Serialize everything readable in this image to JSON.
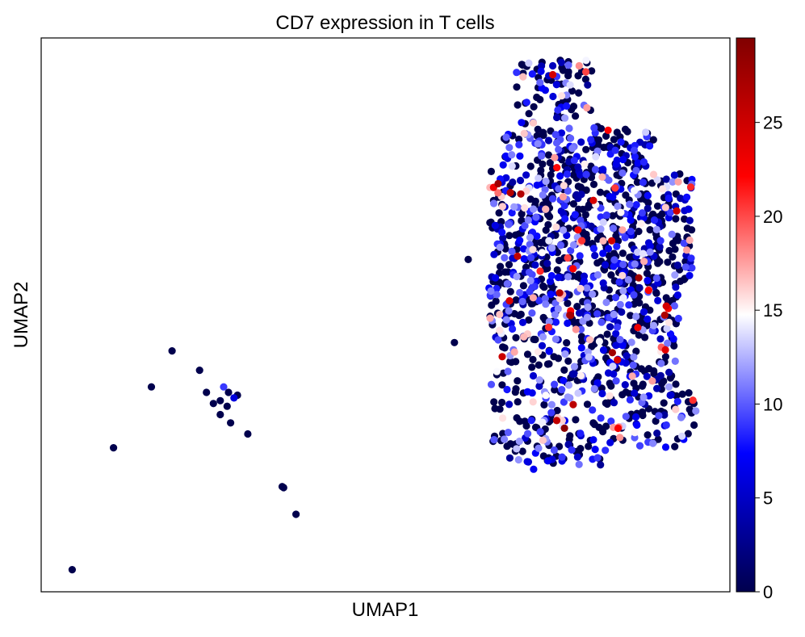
{
  "chart_data": {
    "type": "scatter",
    "title": "CD7 expression in T cells",
    "xlabel": "UMAP1",
    "ylabel": "UMAP2",
    "xlim": [
      0,
      10
    ],
    "ylim": [
      0,
      10
    ],
    "x_ticks_shown": false,
    "y_ticks_shown": false,
    "grid": false,
    "point_color_by": "CD7 expression",
    "colorbar": {
      "range": [
        0,
        29.5
      ],
      "ticks": [
        0,
        5,
        10,
        15,
        20,
        25
      ],
      "tick_labels": [
        "0",
        "5",
        "10",
        "15",
        "20",
        "25"
      ],
      "colormap": "seismic",
      "stops": [
        "#00004d",
        "#0000ff",
        "#ffffff",
        "#ff0000",
        "#800000"
      ]
    },
    "outlier_points": [
      {
        "x": 0.45,
        "y": 0.4,
        "value": 0
      },
      {
        "x": 1.05,
        "y": 2.6,
        "value": 0
      },
      {
        "x": 1.6,
        "y": 3.7,
        "value": 0
      },
      {
        "x": 1.9,
        "y": 4.35,
        "value": 0
      },
      {
        "x": 2.3,
        "y": 4.0,
        "value": 0
      },
      {
        "x": 2.4,
        "y": 3.6,
        "value": 0
      },
      {
        "x": 2.5,
        "y": 3.4,
        "value": 0
      },
      {
        "x": 2.6,
        "y": 3.45,
        "value": 0
      },
      {
        "x": 2.65,
        "y": 3.7,
        "value": 9
      },
      {
        "x": 2.72,
        "y": 3.6,
        "value": 0
      },
      {
        "x": 2.7,
        "y": 3.35,
        "value": 0
      },
      {
        "x": 2.8,
        "y": 3.5,
        "value": 6
      },
      {
        "x": 2.85,
        "y": 3.55,
        "value": 0
      },
      {
        "x": 2.6,
        "y": 3.2,
        "value": 0
      },
      {
        "x": 2.75,
        "y": 3.05,
        "value": 0
      },
      {
        "x": 3.0,
        "y": 2.85,
        "value": 0
      },
      {
        "x": 3.5,
        "y": 1.9,
        "value": 0
      },
      {
        "x": 3.52,
        "y": 1.88,
        "value": 0
      },
      {
        "x": 3.7,
        "y": 1.4,
        "value": 0
      },
      {
        "x": 6.0,
        "y": 4.5,
        "value": 0
      },
      {
        "x": 6.2,
        "y": 6.0,
        "value": 0
      }
    ],
    "cluster": {
      "n_points": 1400,
      "x_range": [
        6.3,
        9.6
      ],
      "y_range": [
        2.2,
        9.6
      ],
      "seed": 7,
      "value_distribution": {
        "zero_fraction": 0.48,
        "low_range": [
          3,
          12
        ],
        "mid_range": [
          13,
          18
        ],
        "high_range": [
          19,
          29
        ]
      },
      "high_hotspots": [
        {
          "x": 6.6,
          "y": 7.3
        },
        {
          "x": 7.0,
          "y": 7.2
        },
        {
          "x": 7.7,
          "y": 5.0
        },
        {
          "x": 8.3,
          "y": 4.2
        },
        {
          "x": 9.0,
          "y": 4.4
        },
        {
          "x": 9.1,
          "y": 5.1
        },
        {
          "x": 7.6,
          "y": 3.0
        },
        {
          "x": 7.9,
          "y": 9.5
        },
        {
          "x": 8.4,
          "y": 3.0
        }
      ]
    }
  }
}
